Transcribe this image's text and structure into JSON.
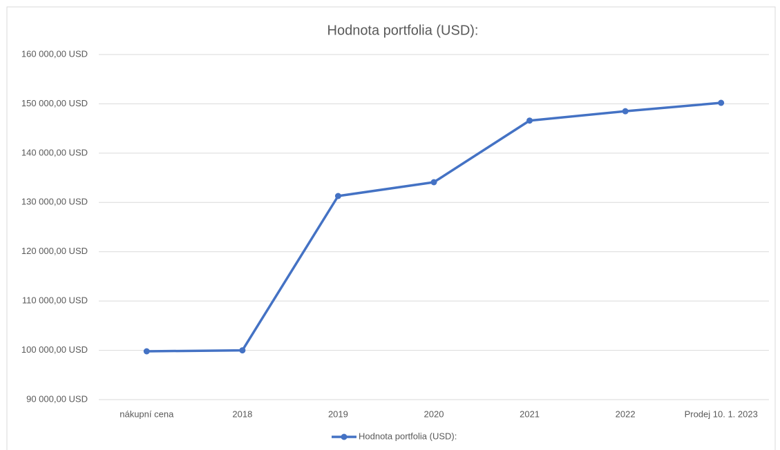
{
  "chart_data": {
    "type": "line",
    "title": "Hodnota portfolia (USD):",
    "categories": [
      "nákupní cena",
      "2018",
      "2019",
      "2020",
      "2021",
      "2022",
      "Prodej 10. 1. 2023"
    ],
    "series": [
      {
        "name": "Hodnota portfolia (USD):",
        "color": "#4472c4",
        "values": [
          99800,
          100000,
          131300,
          134100,
          146600,
          148500,
          150200
        ]
      }
    ],
    "ylim": [
      90000,
      160000
    ],
    "yticks": [
      {
        "value": 90000,
        "label": "90 000,00 USD"
      },
      {
        "value": 100000,
        "label": "100 000,00 USD"
      },
      {
        "value": 110000,
        "label": "110 000,00 USD"
      },
      {
        "value": 120000,
        "label": "120 000,00 USD"
      },
      {
        "value": 130000,
        "label": "130 000,00 USD"
      },
      {
        "value": 140000,
        "label": "140 000,00 USD"
      },
      {
        "value": 150000,
        "label": "150 000,00 USD"
      },
      {
        "value": 160000,
        "label": "160 000,00 USD"
      }
    ],
    "grid": true,
    "legend": "bottom"
  }
}
